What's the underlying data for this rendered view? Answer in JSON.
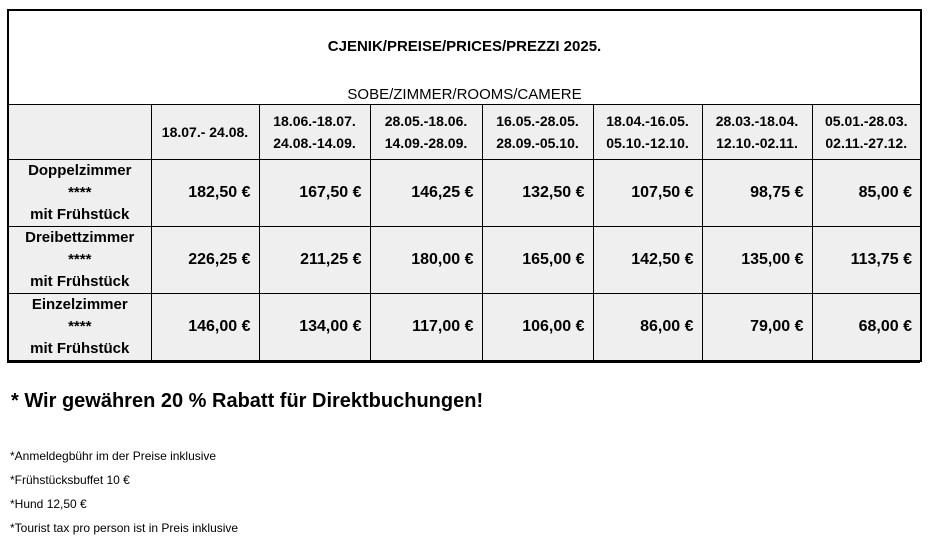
{
  "title": "CJENIK/PREISE/PRICES/PREZZI 2025.",
  "subtitle": "SOBE/ZIMMER/ROOMS/CAMERE",
  "periods": [
    {
      "line1": "18.07.- 24.08.",
      "line2": ""
    },
    {
      "line1": "18.06.-18.07.",
      "line2": "24.08.-14.09."
    },
    {
      "line1": "28.05.-18.06.",
      "line2": "14.09.-28.09."
    },
    {
      "line1": "16.05.-28.05.",
      "line2": "28.09.-05.10."
    },
    {
      "line1": "18.04.-16.05.",
      "line2": "05.10.-12.10."
    },
    {
      "line1": "28.03.-18.04.",
      "line2": "12.10.-02.11."
    },
    {
      "line1": "05.01.-28.03.",
      "line2": "02.11.-27.12."
    }
  ],
  "rooms": [
    {
      "name": "Doppelzimmer",
      "stars": "****",
      "board": "mit Frühstück",
      "prices": [
        "182,50 €",
        "167,50 €",
        "146,25 €",
        "132,50 €",
        "107,50 €",
        "98,75 €",
        "85,00 €"
      ]
    },
    {
      "name": "Dreibettzimmer",
      "stars": "****",
      "board": "mit Frühstück",
      "prices": [
        "226,25 €",
        "211,25 €",
        "180,00 €",
        "165,00 €",
        "142,50 €",
        "135,00 €",
        "113,75 €"
      ]
    },
    {
      "name": "Einzelzimmer",
      "stars": "****",
      "board": "mit Frühstück",
      "prices": [
        "146,00 €",
        "134,00 €",
        "117,00 €",
        "106,00 €",
        "86,00 €",
        "79,00 €",
        "68,00 €"
      ]
    }
  ],
  "discount": "* Wir gewähren 20 % Rabatt für Direktbuchungen!",
  "notes": [
    "*Anmeldegbühr im der Preise inklusive",
    "*Frühstücksbuffet 10 €",
    "*Hund 12,50 €",
    "*Tourist tax pro person ist in Preis inklusive"
  ]
}
